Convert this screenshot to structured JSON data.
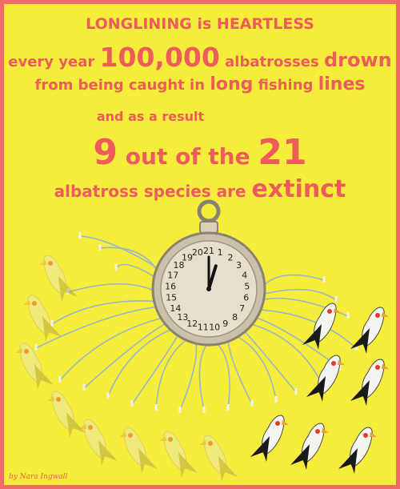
{
  "headline": "LONGLINING is HEARTLESS",
  "stat_line": {
    "prefix": "every year",
    "number": "100,000",
    "middle": "albatrosses",
    "verb": "drown"
  },
  "cause_line": {
    "prefix": "from being caught in",
    "emph": "long",
    "middle": "fishing",
    "suffix": "lines"
  },
  "result_intro": "and as a result",
  "result_line": {
    "num_a": "9",
    "middle": "out of the",
    "num_b": "21"
  },
  "extinct_line": {
    "prefix": "albatross species are",
    "emph": "extinct"
  },
  "clock": {
    "numbers": [
      "21",
      "1",
      "2",
      "3",
      "4",
      "5",
      "6",
      "7",
      "8",
      "9",
      "10",
      "11",
      "12",
      "13",
      "14",
      "15",
      "16",
      "17",
      "18",
      "19",
      "20"
    ],
    "hour_value": 1,
    "minute_value": 0
  },
  "signature": "by Nara Ingwall",
  "colors": {
    "background": "#f5ec3c",
    "border": "#f06a6a",
    "text": "#ee5b5b",
    "line": "#9bb7c4",
    "clock_face": "#e6dfcb"
  }
}
